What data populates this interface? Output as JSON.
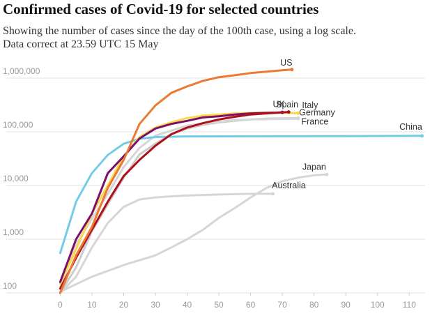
{
  "chart_data": {
    "type": "line",
    "title": "Confirmed cases of Covid-19 for selected countries",
    "subtitle": [
      "Showing the number of cases since the day of the 100th case, using a log scale.",
      "Data correct at 23.59 UTC 15 May"
    ],
    "log_y": true,
    "grid": true,
    "xlim": [
      -17,
      115
    ],
    "xticks": [
      0,
      10,
      20,
      30,
      40,
      50,
      60,
      70,
      80,
      90,
      100,
      110
    ],
    "ylim": [
      100,
      1000000
    ],
    "yticks": [
      100,
      {
        "value": 1000,
        "label": "1,000"
      },
      {
        "value": 10000,
        "label": "10,000"
      },
      {
        "value": 100000,
        "label": "100,000"
      },
      {
        "value": 1000000,
        "label": "1,000,000"
      }
    ],
    "series": [
      {
        "name": "Japan",
        "color": "#d6d6d6",
        "x": [
          0,
          10,
          20,
          30,
          35,
          40,
          45,
          50,
          55,
          60,
          65,
          70,
          75,
          80,
          84
        ],
        "values": [
          105,
          200,
          330,
          500,
          700,
          1000,
          1500,
          2500,
          3800,
          6000,
          9000,
          12000,
          14000,
          15500,
          16000
        ]
      },
      {
        "name": "Australia",
        "color": "#d6d6d6",
        "x": [
          0,
          5,
          10,
          15,
          20,
          25,
          30,
          35,
          40,
          50,
          60,
          67
        ],
        "values": [
          100,
          200,
          700,
          2000,
          4000,
          5500,
          6000,
          6300,
          6500,
          6800,
          7000,
          7000
        ]
      },
      {
        "name": "France",
        "color": "#cccccc",
        "x": [
          0,
          5,
          10,
          15,
          20,
          25,
          30,
          35,
          40,
          45,
          50,
          55,
          60,
          65,
          70,
          75
        ],
        "values": [
          100,
          300,
          1400,
          4500,
          14000,
          38000,
          60000,
          90000,
          115000,
          135000,
          150000,
          160000,
          170000,
          176000,
          178000,
          179000
        ]
      },
      {
        "name": "Germany",
        "color": "#d6d6d6",
        "x": [
          0,
          5,
          10,
          15,
          20,
          25,
          30,
          35,
          40,
          45,
          50,
          55,
          60,
          65,
          70,
          75
        ],
        "values": [
          130,
          800,
          2400,
          7000,
          22000,
          50000,
          85000,
          105000,
          130000,
          145000,
          155000,
          165000,
          170000,
          172000,
          174000,
          175000
        ]
      },
      {
        "name": "China",
        "color": "#72cce8",
        "x": [
          0,
          5,
          10,
          15,
          20,
          25,
          30,
          40,
          60,
          80,
          100,
          114
        ],
        "values": [
          550,
          5000,
          17000,
          37000,
          60000,
          74000,
          80000,
          82000,
          82500,
          83000,
          83500,
          84000
        ]
      },
      {
        "name": "Italy",
        "color": "#f9d94a",
        "x": [
          0,
          5,
          10,
          15,
          20,
          25,
          30,
          35,
          40,
          45,
          50,
          55,
          60,
          65,
          70,
          75
        ],
        "values": [
          150,
          650,
          3000,
          10000,
          35000,
          80000,
          120000,
          150000,
          180000,
          200000,
          210000,
          220000,
          225000,
          229000,
          226000,
          223000
        ]
      },
      {
        "name": "Spain",
        "color": "#7d0f6b",
        "x": [
          0,
          5,
          10,
          15,
          20,
          25,
          30,
          35,
          40,
          45,
          50,
          55,
          60,
          65,
          70
        ],
        "values": [
          160,
          1000,
          3000,
          17000,
          35000,
          75000,
          115000,
          140000,
          160000,
          185000,
          195000,
          210000,
          220000,
          225000,
          230000
        ]
      },
      {
        "name": "UK",
        "color": "#b0101c",
        "x": [
          0,
          5,
          10,
          15,
          20,
          25,
          30,
          35,
          40,
          45,
          50,
          55,
          60,
          65,
          70,
          72
        ],
        "values": [
          120,
          450,
          1500,
          5000,
          15000,
          30000,
          55000,
          90000,
          120000,
          145000,
          170000,
          190000,
          210000,
          220000,
          230000,
          234000
        ]
      },
      {
        "name": "US",
        "color": "#eb7a32",
        "x": [
          0,
          5,
          10,
          15,
          20,
          25,
          30,
          35,
          40,
          45,
          50,
          55,
          60,
          65,
          70,
          73
        ],
        "values": [
          100,
          500,
          1700,
          9000,
          30000,
          140000,
          310000,
          530000,
          700000,
          890000,
          1040000,
          1130000,
          1240000,
          1320000,
          1400000,
          1442000
        ]
      }
    ]
  }
}
